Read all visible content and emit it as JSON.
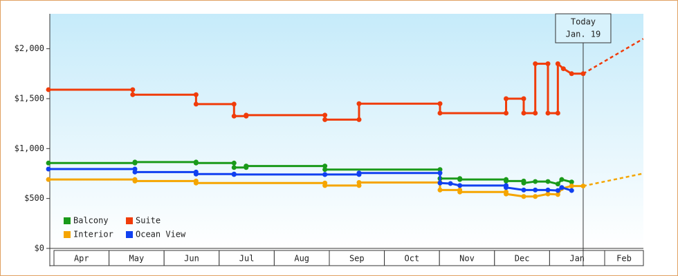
{
  "chart_data": {
    "type": "line",
    "categories": [
      "Apr",
      "May",
      "Jun",
      "Jul",
      "Aug",
      "Sep",
      "Oct",
      "Nov",
      "Dec",
      "Jan",
      "Feb"
    ],
    "xlim": [
      -0.1,
      10.7
    ],
    "ylim": [
      0,
      2350
    ],
    "yticks": [
      {
        "value": 0,
        "label": "$0"
      },
      {
        "value": 500,
        "label": "$500"
      },
      {
        "value": 1000,
        "label": "$1,000"
      },
      {
        "value": 1500,
        "label": "$1,500"
      },
      {
        "value": 2000,
        "label": "$2,000"
      }
    ],
    "legend": "bottom-left",
    "today": {
      "x": 9.61,
      "label": "Today",
      "date": "Jan. 19"
    },
    "series": [
      {
        "name": "Balcony",
        "color": "#1a9a1a",
        "x": [
          -0.1,
          1.47,
          1.47,
          2.58,
          2.58,
          3.27,
          3.27,
          3.49,
          3.49,
          4.92,
          4.92,
          7.01,
          7.01,
          7.37,
          7.37,
          8.21,
          8.21,
          8.53,
          8.53,
          8.74,
          8.97,
          9.15,
          9.22,
          9.4
        ],
        "values": [
          855,
          855,
          865,
          865,
          855,
          855,
          810,
          810,
          825,
          825,
          790,
          790,
          700,
          700,
          690,
          690,
          675,
          675,
          655,
          670,
          670,
          645,
          690,
          665
        ]
      },
      {
        "name": "Suite",
        "color": "#f03c0a",
        "x": [
          -0.1,
          1.43,
          1.43,
          2.58,
          2.58,
          3.27,
          3.27,
          3.49,
          3.49,
          4.92,
          4.92,
          5.54,
          5.54,
          7.01,
          7.01,
          8.21,
          8.21,
          8.53,
          8.53,
          8.74,
          8.74,
          8.97,
          8.97,
          9.15,
          9.15,
          9.25,
          9.4,
          9.61
        ],
        "values": [
          1590,
          1590,
          1540,
          1540,
          1445,
          1445,
          1325,
          1325,
          1335,
          1335,
          1290,
          1290,
          1450,
          1450,
          1355,
          1355,
          1500,
          1500,
          1355,
          1355,
          1850,
          1850,
          1355,
          1355,
          1850,
          1800,
          1750,
          1750
        ],
        "projection": {
          "x": [
            9.61,
            10.7
          ],
          "values": [
            1750,
            2100
          ]
        }
      },
      {
        "name": "Interior",
        "color": "#f5a500",
        "x": [
          -0.1,
          1.47,
          1.47,
          2.58,
          2.58,
          4.92,
          4.92,
          5.54,
          5.54,
          7.01,
          7.01,
          7.37,
          7.37,
          8.21,
          8.21,
          8.53,
          8.74,
          8.97,
          9.15,
          9.22,
          9.4,
          9.61
        ],
        "values": [
          690,
          690,
          675,
          675,
          655,
          655,
          630,
          630,
          660,
          660,
          585,
          585,
          565,
          565,
          545,
          520,
          520,
          545,
          540,
          600,
          625,
          625
        ],
        "projection": {
          "x": [
            9.61,
            10.7
          ],
          "values": [
            625,
            750
          ]
        }
      },
      {
        "name": "Ocean View",
        "color": "#1040f0",
        "x": [
          -0.1,
          1.47,
          1.47,
          2.58,
          2.58,
          3.27,
          3.27,
          4.92,
          4.92,
          5.54,
          5.54,
          7.01,
          7.01,
          7.2,
          7.37,
          8.21,
          8.21,
          8.53,
          8.74,
          8.97,
          9.15,
          9.22,
          9.4
        ],
        "values": [
          795,
          795,
          765,
          765,
          745,
          745,
          740,
          740,
          740,
          740,
          755,
          755,
          655,
          650,
          630,
          630,
          610,
          585,
          585,
          585,
          580,
          610,
          580
        ]
      }
    ]
  }
}
